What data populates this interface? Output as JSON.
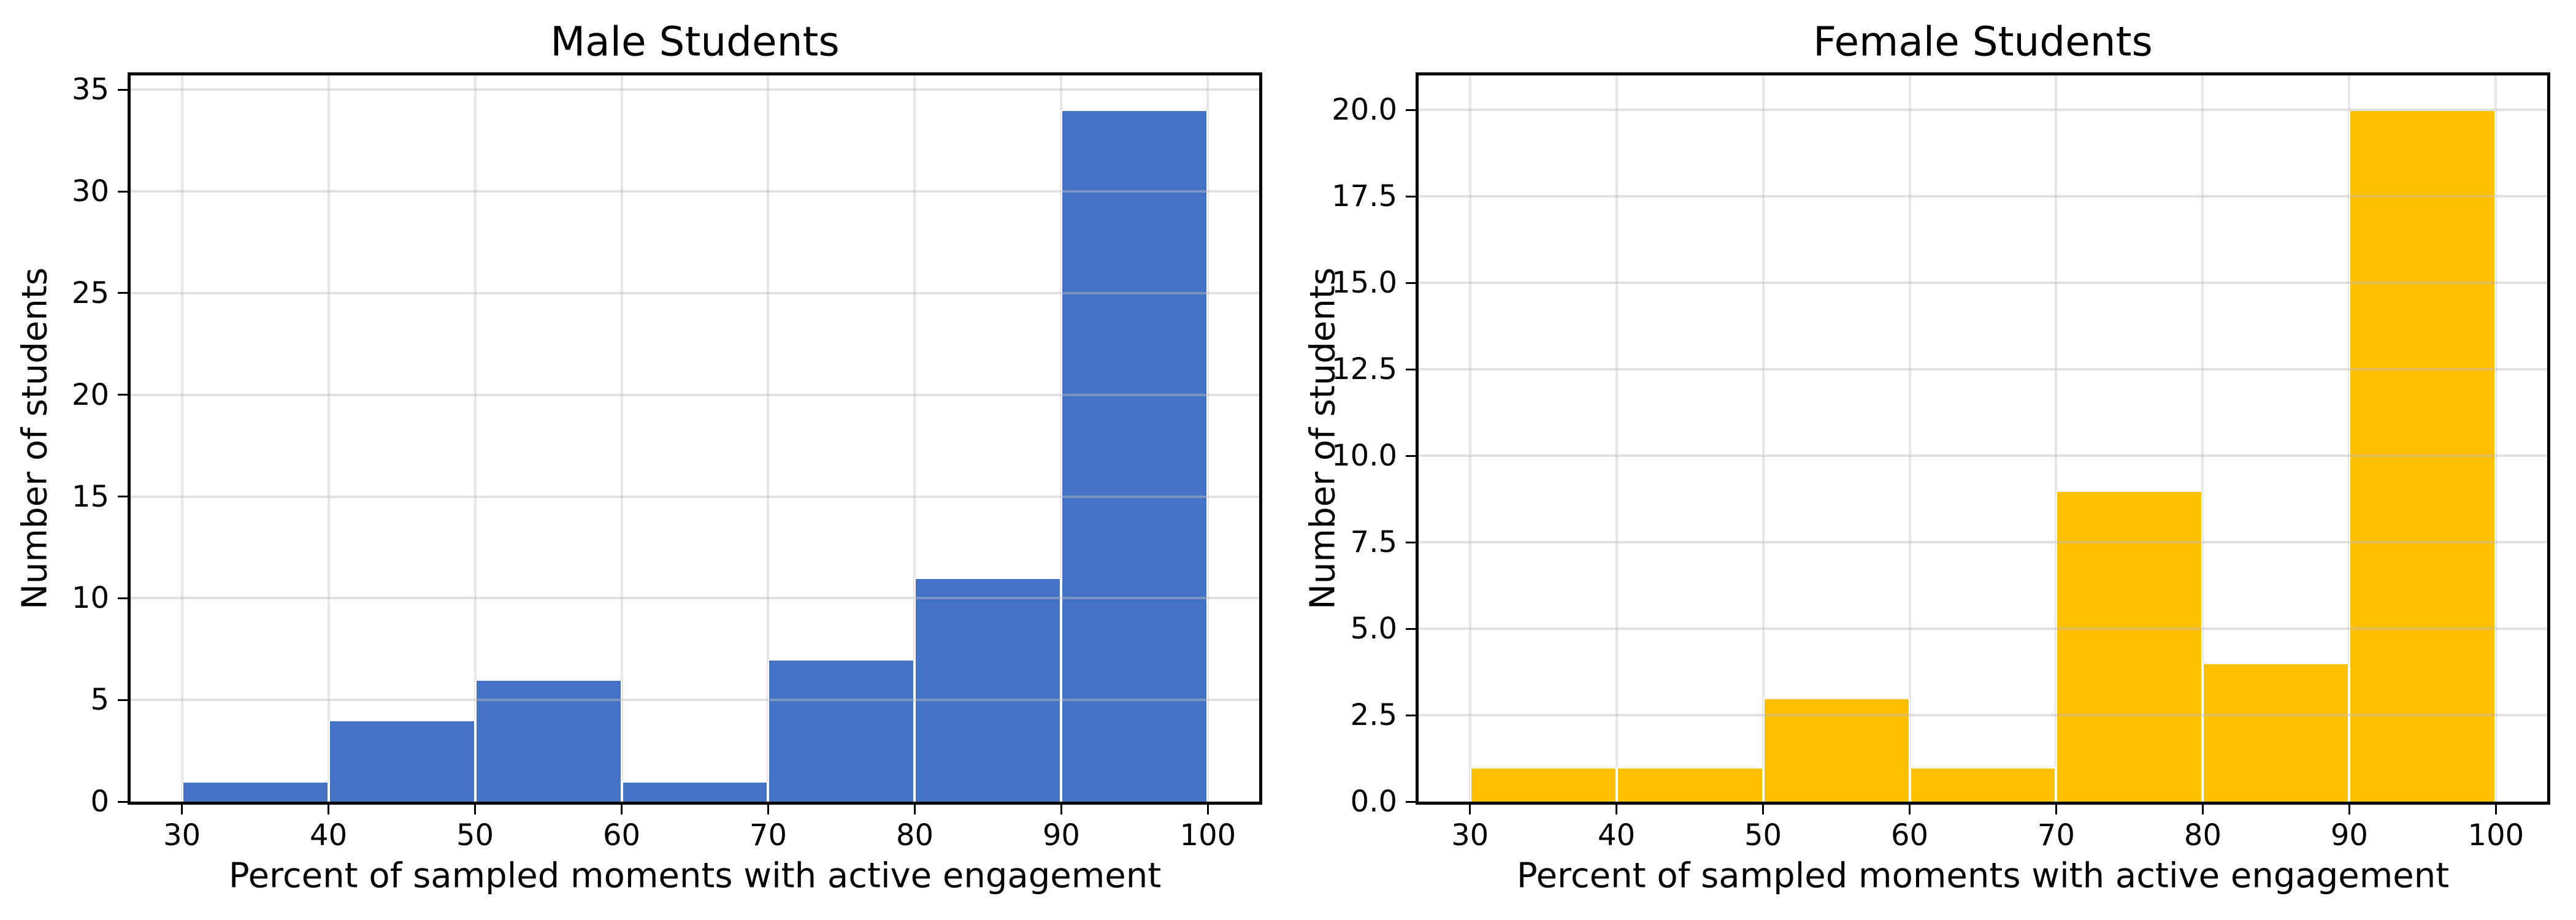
{
  "chart_data": [
    {
      "type": "bar",
      "title": "Male Students",
      "xlabel": "Percent of sampled moments with active engagement",
      "ylabel": "Number of students",
      "bar_color": "#4472C4",
      "grid_color": "#E6E6E6",
      "bin_edges": [
        30,
        40,
        50,
        60,
        70,
        80,
        90,
        100
      ],
      "categories": [
        "30-40",
        "40-50",
        "50-60",
        "60-70",
        "70-80",
        "80-90",
        "90-100"
      ],
      "values": [
        1,
        4,
        6,
        1,
        7,
        11,
        34
      ],
      "x_tick_labels": [
        "30",
        "40",
        "50",
        "60",
        "70",
        "80",
        "90",
        "100"
      ],
      "y_tick_labels": [
        "0",
        "5",
        "10",
        "15",
        "20",
        "25",
        "30",
        "35"
      ],
      "xlim": [
        26.5,
        103.5
      ],
      "ylim": [
        0,
        35.7
      ],
      "grid": true,
      "legend_position": "none"
    },
    {
      "type": "bar",
      "title": "Female Students",
      "xlabel": "Percent of sampled moments with active engagement",
      "ylabel": "Number of students",
      "bar_color": "#FFC000",
      "grid_color": "#E6E6E6",
      "bin_edges": [
        30,
        40,
        50,
        60,
        70,
        80,
        90,
        100
      ],
      "categories": [
        "30-40",
        "40-50",
        "50-60",
        "60-70",
        "70-80",
        "80-90",
        "90-100"
      ],
      "values": [
        1,
        1,
        3,
        1,
        9,
        4,
        20
      ],
      "x_tick_labels": [
        "30",
        "40",
        "50",
        "60",
        "70",
        "80",
        "90",
        "100"
      ],
      "y_tick_labels": [
        "0.0",
        "2.5",
        "5.0",
        "7.5",
        "10.0",
        "12.5",
        "15.0",
        "17.5",
        "20.0"
      ],
      "xlim": [
        26.5,
        103.5
      ],
      "ylim": [
        0,
        21
      ],
      "grid": true,
      "legend_position": "none"
    }
  ]
}
